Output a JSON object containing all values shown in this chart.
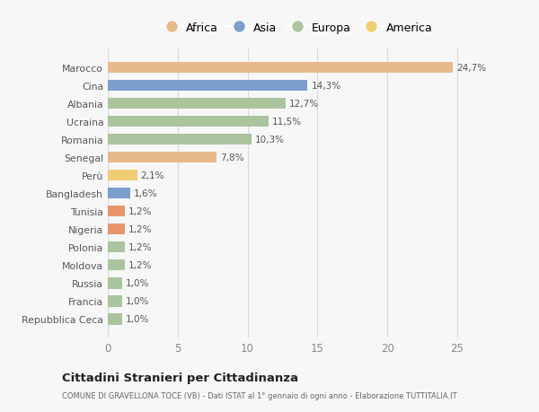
{
  "categories": [
    "Repubblica Ceca",
    "Francia",
    "Russia",
    "Moldova",
    "Polonia",
    "Nigeria",
    "Tunisia",
    "Bangladesh",
    "Perù",
    "Senegal",
    "Romania",
    "Ucraina",
    "Albania",
    "Cina",
    "Marocco"
  ],
  "values": [
    1.0,
    1.0,
    1.0,
    1.2,
    1.2,
    1.2,
    1.2,
    1.6,
    2.1,
    7.8,
    10.3,
    11.5,
    12.7,
    14.3,
    24.7
  ],
  "labels": [
    "1,0%",
    "1,0%",
    "1,0%",
    "1,2%",
    "1,2%",
    "1,2%",
    "1,2%",
    "1,6%",
    "2,1%",
    "7,8%",
    "10,3%",
    "11,5%",
    "12,7%",
    "14,3%",
    "24,7%"
  ],
  "colors": [
    "#aac49e",
    "#aac49e",
    "#aac49e",
    "#aac49e",
    "#aac49e",
    "#e8956a",
    "#e8956a",
    "#7b9fcc",
    "#f0cc72",
    "#e8b98a",
    "#aac49e",
    "#aac49e",
    "#aac49e",
    "#7b9fcc",
    "#e8b98a"
  ],
  "legend_labels": [
    "Africa",
    "Asia",
    "Europa",
    "America"
  ],
  "legend_colors": [
    "#e8b98a",
    "#7b9fcc",
    "#aac49e",
    "#f0cc72"
  ],
  "title": "Cittadini Stranieri per Cittadinanza",
  "subtitle": "COMUNE DI GRAVELLONA TOCE (VB) - Dati ISTAT al 1° gennaio di ogni anno - Elaborazione TUTTITALIA.IT",
  "xlim": [
    0,
    27
  ],
  "xticks": [
    0,
    5,
    10,
    15,
    20,
    25
  ],
  "background_color": "#f7f7f7",
  "grid_color": "#d8d8d8"
}
